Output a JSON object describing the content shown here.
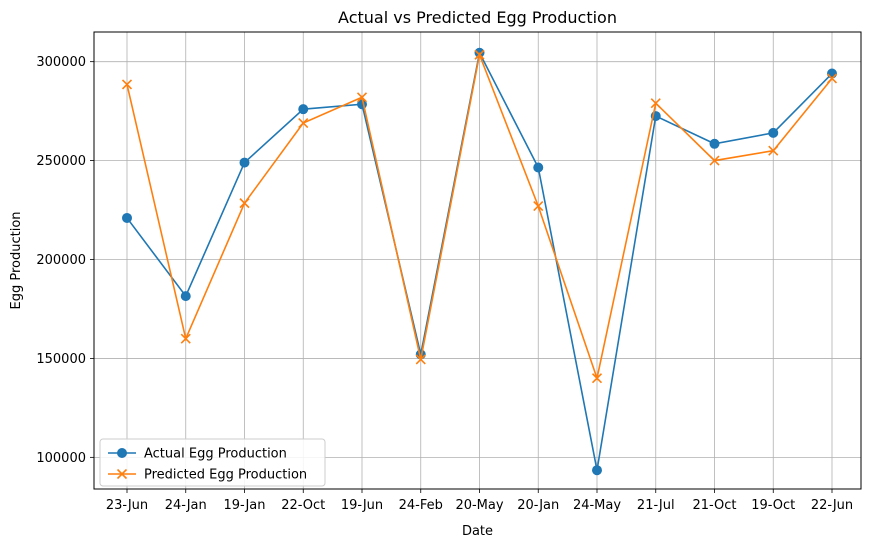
{
  "chart_data": {
    "type": "line",
    "title": "Actual vs Predicted Egg Production",
    "xlabel": "Date",
    "ylabel": "Egg Production",
    "categories": [
      "23-Jun",
      "24-Jan",
      "19-Jan",
      "22-Oct",
      "19-Jun",
      "24-Feb",
      "20-May",
      "20-Jan",
      "24-May",
      "21-Jul",
      "21-Oct",
      "19-Oct",
      "22-Jun"
    ],
    "ylim": [
      84000,
      315000
    ],
    "yticks": [
      100000,
      150000,
      200000,
      250000,
      300000
    ],
    "ytick_labels": [
      "100000",
      "150000",
      "200000",
      "250000",
      "300000"
    ],
    "grid": true,
    "legend_position": "lower-left",
    "series": [
      {
        "name": "Actual Egg Production",
        "color": "#1f77b4",
        "marker": "circle",
        "values": [
          221000,
          181500,
          249000,
          276000,
          278500,
          152000,
          304500,
          246500,
          93500,
          272500,
          258500,
          264000,
          294000
        ]
      },
      {
        "name": "Predicted Egg Production",
        "color": "#ff7f0e",
        "marker": "x",
        "values": [
          288500,
          160000,
          228500,
          269000,
          282000,
          149500,
          303500,
          227000,
          140000,
          279000,
          250000,
          255000,
          291500
        ]
      }
    ]
  }
}
